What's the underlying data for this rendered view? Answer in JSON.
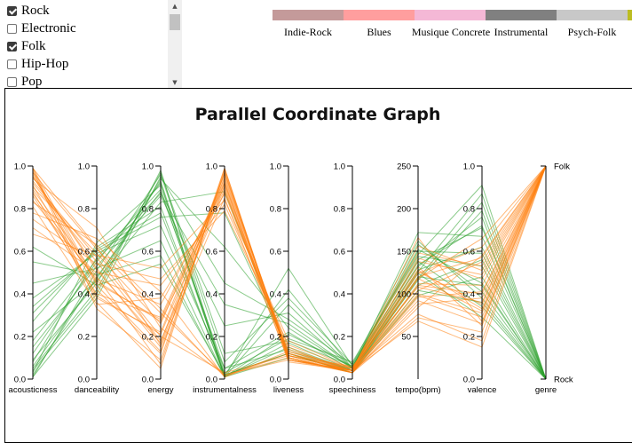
{
  "genre_filter": {
    "items": [
      {
        "label": "Rock",
        "checked": true
      },
      {
        "label": "Electronic",
        "checked": false
      },
      {
        "label": "Folk",
        "checked": true
      },
      {
        "label": "Hip-Hop",
        "checked": false
      },
      {
        "label": "Pop",
        "checked": false
      }
    ],
    "scroll_up_icon": "triangle-up",
    "scroll_down_icon": "triangle-down"
  },
  "legend": {
    "items": [
      {
        "label": "Indie-Rock",
        "color": "#c49a9a"
      },
      {
        "label": "Blues",
        "color": "#ff9e9e"
      },
      {
        "label": "Musique Concrete",
        "color": "#f4b8d6"
      },
      {
        "label": "Instrumental",
        "color": "#808080"
      },
      {
        "label": "Psych-Folk",
        "color": "#c8c8c8"
      },
      {
        "label": "",
        "color": "#bcbd22"
      }
    ]
  },
  "chart_data": {
    "type": "parallel-coordinates",
    "title": "Parallel Coordinate Graph",
    "axes": [
      {
        "name": "acousticness",
        "range": [
          0,
          1
        ],
        "ticks": [
          "0.0",
          "0.2",
          "0.4",
          "0.6",
          "0.8",
          "1.0"
        ]
      },
      {
        "name": "danceability",
        "range": [
          0,
          1
        ],
        "ticks": [
          "0.0",
          "0.2",
          "0.4",
          "0.6",
          "0.8",
          "1.0"
        ]
      },
      {
        "name": "energy",
        "range": [
          0,
          1
        ],
        "ticks": [
          "0.0",
          "0.2",
          "0.4",
          "0.6",
          "0.8",
          "1.0"
        ]
      },
      {
        "name": "instrumentalness",
        "range": [
          0,
          1
        ],
        "ticks": [
          "0.0",
          "0.2",
          "0.4",
          "0.6",
          "0.8",
          "1.0"
        ]
      },
      {
        "name": "liveness",
        "range": [
          0,
          1
        ],
        "ticks": [
          "0.0",
          "0.2",
          "0.4",
          "0.6",
          "0.8",
          "1.0"
        ]
      },
      {
        "name": "speechiness",
        "range": [
          0,
          1
        ],
        "ticks": [
          "0.0",
          "0.2",
          "0.4",
          "0.6",
          "0.8",
          "1.0"
        ]
      },
      {
        "name": "tempo(bpm)",
        "range": [
          0,
          250
        ],
        "ticks": [
          "50",
          "100",
          "150",
          "200",
          "250"
        ]
      },
      {
        "name": "valence",
        "range": [
          0,
          1
        ],
        "ticks": [
          "0.0",
          "0.2",
          "0.4",
          "0.6",
          "0.8",
          "1.0"
        ]
      },
      {
        "name": "genre",
        "categorical": true,
        "ticks": [
          "Rock",
          "Folk"
        ]
      }
    ],
    "series": [
      {
        "name": "Folk",
        "color": "#ff7f0e"
      },
      {
        "name": "Rock",
        "color": "#2ca02c"
      }
    ],
    "records": [
      {
        "genre": "Folk",
        "values": [
          0.99,
          0.45,
          0.28,
          0.92,
          0.11,
          0.04,
          118,
          0.32
        ]
      },
      {
        "genre": "Folk",
        "values": [
          0.95,
          0.52,
          0.15,
          0.85,
          0.09,
          0.03,
          96,
          0.41
        ]
      },
      {
        "genre": "Folk",
        "values": [
          0.88,
          0.38,
          0.22,
          0.96,
          0.12,
          0.05,
          132,
          0.25
        ]
      },
      {
        "genre": "Folk",
        "values": [
          0.97,
          0.61,
          0.31,
          0.02,
          0.1,
          0.04,
          104,
          0.55
        ]
      },
      {
        "genre": "Folk",
        "values": [
          0.92,
          0.55,
          0.18,
          0.88,
          0.15,
          0.03,
          88,
          0.38
        ]
      },
      {
        "genre": "Folk",
        "values": [
          0.84,
          0.47,
          0.35,
          0.9,
          0.08,
          0.04,
          142,
          0.47
        ]
      },
      {
        "genre": "Folk",
        "values": [
          0.98,
          0.33,
          0.09,
          0.97,
          0.11,
          0.04,
          76,
          0.18
        ]
      },
      {
        "genre": "Folk",
        "values": [
          0.78,
          0.66,
          0.41,
          0.01,
          0.13,
          0.05,
          124,
          0.62
        ]
      },
      {
        "genre": "Folk",
        "values": [
          0.9,
          0.59,
          0.26,
          0.93,
          0.1,
          0.03,
          112,
          0.44
        ]
      },
      {
        "genre": "Folk",
        "values": [
          0.96,
          0.42,
          0.12,
          0.99,
          0.09,
          0.04,
          98,
          0.29
        ]
      },
      {
        "genre": "Folk",
        "values": [
          0.71,
          0.5,
          0.44,
          0.82,
          0.14,
          0.04,
          156,
          0.51
        ]
      },
      {
        "genre": "Folk",
        "values": [
          0.93,
          0.57,
          0.2,
          0.03,
          0.11,
          0.06,
          108,
          0.36
        ]
      },
      {
        "genre": "Folk",
        "values": [
          0.86,
          0.4,
          0.29,
          0.94,
          0.12,
          0.04,
          166,
          0.27
        ]
      },
      {
        "genre": "Folk",
        "values": [
          0.99,
          0.62,
          0.16,
          0.91,
          0.1,
          0.03,
          84,
          0.58
        ]
      },
      {
        "genre": "Folk",
        "values": [
          0.81,
          0.35,
          0.38,
          0.87,
          0.13,
          0.05,
          128,
          0.33
        ]
      },
      {
        "genre": "Folk",
        "values": [
          0.94,
          0.71,
          0.24,
          0.02,
          0.09,
          0.04,
          118,
          0.66
        ]
      },
      {
        "genre": "Folk",
        "values": [
          0.89,
          0.48,
          0.07,
          0.98,
          0.1,
          0.03,
          72,
          0.22
        ]
      },
      {
        "genre": "Folk",
        "values": [
          0.75,
          0.54,
          0.47,
          0.79,
          0.16,
          0.05,
          138,
          0.49
        ]
      },
      {
        "genre": "Folk",
        "values": [
          0.97,
          0.44,
          0.13,
          0.95,
          0.11,
          0.04,
          100,
          0.31
        ]
      },
      {
        "genre": "Folk",
        "values": [
          0.83,
          0.63,
          0.33,
          0.01,
          0.12,
          0.04,
          120,
          0.57
        ]
      },
      {
        "genre": "Folk",
        "values": [
          0.91,
          0.39,
          0.21,
          0.92,
          0.09,
          0.04,
          92,
          0.26
        ]
      },
      {
        "genre": "Folk",
        "values": [
          0.68,
          0.58,
          0.52,
          0.84,
          0.18,
          0.05,
          148,
          0.53
        ]
      },
      {
        "genre": "Folk",
        "values": [
          0.95,
          0.51,
          0.17,
          0.97,
          0.1,
          0.03,
          110,
          0.4
        ]
      },
      {
        "genre": "Folk",
        "values": [
          0.87,
          0.46,
          0.27,
          0.89,
          0.11,
          0.04,
          126,
          0.35
        ]
      },
      {
        "genre": "Folk",
        "values": [
          0.99,
          0.36,
          0.05,
          0.99,
          0.09,
          0.04,
          68,
          0.15
        ]
      },
      {
        "genre": "Rock",
        "values": [
          0.02,
          0.48,
          0.88,
          0.05,
          0.22,
          0.04,
          128,
          0.62
        ]
      },
      {
        "genre": "Rock",
        "values": [
          0.12,
          0.55,
          0.92,
          0.01,
          0.35,
          0.05,
          140,
          0.71
        ]
      },
      {
        "genre": "Rock",
        "values": [
          0.05,
          0.42,
          0.97,
          0.12,
          0.18,
          0.06,
          152,
          0.45
        ]
      },
      {
        "genre": "Rock",
        "values": [
          0.31,
          0.61,
          0.78,
          0.02,
          0.12,
          0.03,
          118,
          0.83
        ]
      },
      {
        "genre": "Rock",
        "values": [
          0.01,
          0.38,
          0.95,
          0.45,
          0.28,
          0.07,
          162,
          0.38
        ]
      },
      {
        "genre": "Rock",
        "values": [
          0.45,
          0.52,
          0.65,
          0.01,
          0.15,
          0.04,
          110,
          0.56
        ]
      },
      {
        "genre": "Rock",
        "values": [
          0.08,
          0.57,
          0.89,
          0.02,
          0.42,
          0.05,
          132,
          0.76
        ]
      },
      {
        "genre": "Rock",
        "values": [
          0.22,
          0.46,
          0.83,
          0.88,
          0.11,
          0.04,
          124,
          0.29
        ]
      },
      {
        "genre": "Rock",
        "values": [
          0.03,
          0.64,
          0.91,
          0.03,
          0.19,
          0.08,
          146,
          0.91
        ]
      },
      {
        "genre": "Rock",
        "values": [
          0.55,
          0.49,
          0.58,
          0.01,
          0.1,
          0.03,
          98,
          0.48
        ]
      },
      {
        "genre": "Rock",
        "values": [
          0.15,
          0.53,
          0.86,
          0.25,
          0.31,
          0.05,
          172,
          0.67
        ]
      },
      {
        "genre": "Rock",
        "values": [
          0.04,
          0.4,
          0.98,
          0.01,
          0.52,
          0.06,
          138,
          0.34
        ]
      },
      {
        "genre": "Rock",
        "values": [
          0.38,
          0.59,
          0.72,
          0.05,
          0.14,
          0.04,
          116,
          0.79
        ]
      },
      {
        "genre": "Rock",
        "values": [
          0.09,
          0.45,
          0.94,
          0.62,
          0.24,
          0.05,
          158,
          0.41
        ]
      },
      {
        "genre": "Rock",
        "values": [
          0.27,
          0.62,
          0.81,
          0.01,
          0.17,
          0.04,
          126,
          0.87
        ]
      },
      {
        "genre": "Rock",
        "values": [
          0.01,
          0.51,
          0.96,
          0.08,
          0.38,
          0.07,
          144,
          0.53
        ]
      },
      {
        "genre": "Rock",
        "values": [
          0.62,
          0.44,
          0.54,
          0.02,
          0.12,
          0.03,
          104,
          0.36
        ]
      },
      {
        "genre": "Rock",
        "values": [
          0.18,
          0.56,
          0.87,
          0.35,
          0.26,
          0.05,
          134,
          0.72
        ]
      },
      {
        "genre": "Rock",
        "values": [
          0.06,
          0.47,
          0.93,
          0.01,
          0.21,
          0.06,
          150,
          0.59
        ]
      },
      {
        "genre": "Rock",
        "values": [
          0.34,
          0.6,
          0.76,
          0.78,
          0.13,
          0.04,
          120,
          0.44
        ]
      }
    ]
  }
}
